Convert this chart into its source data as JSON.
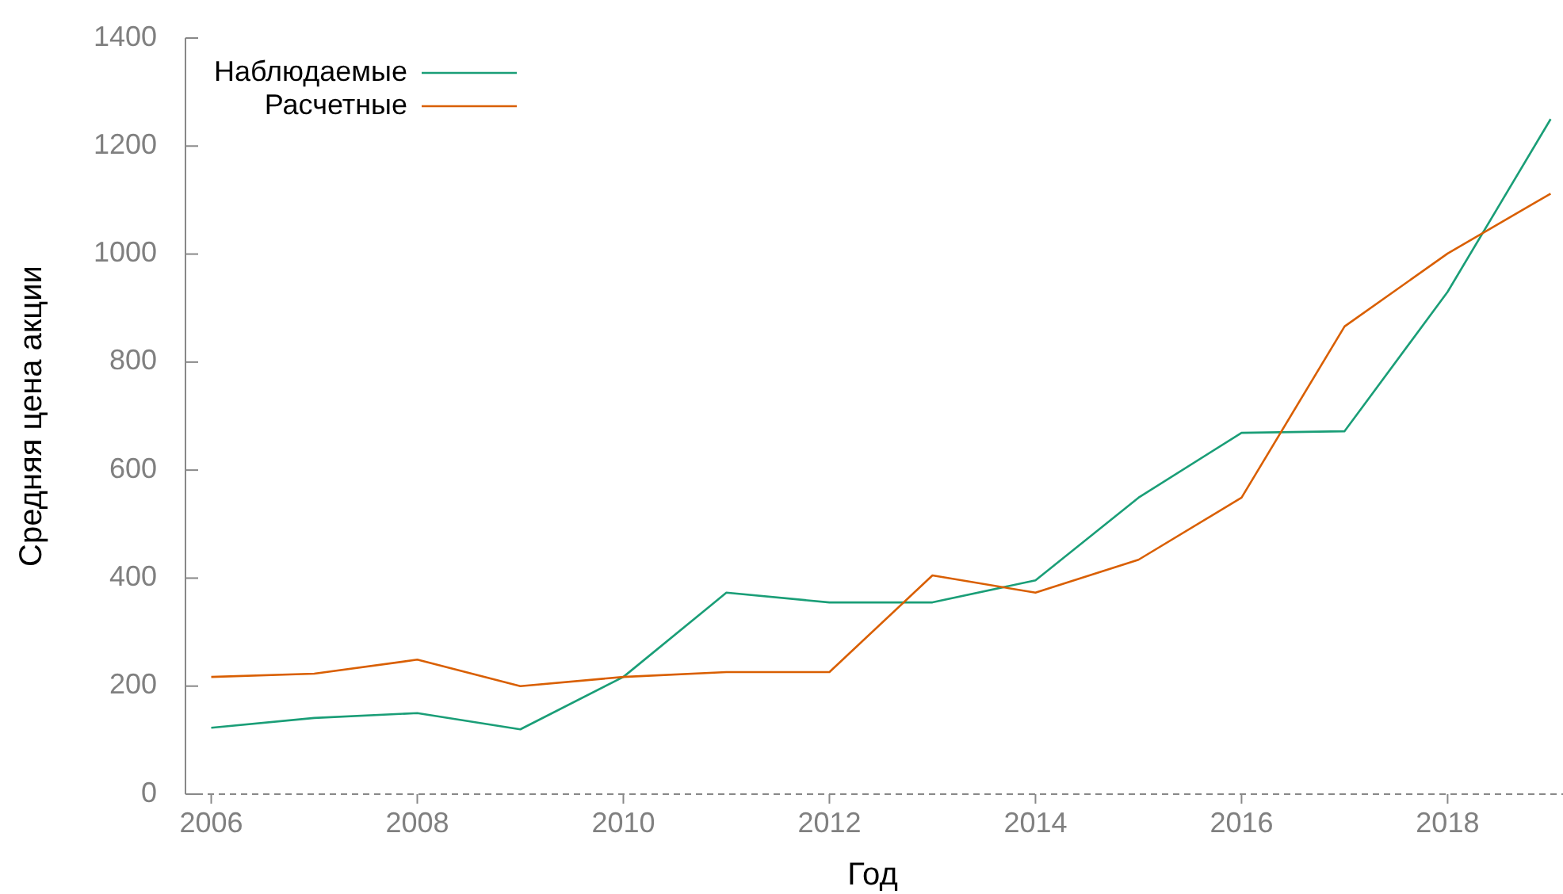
{
  "chart_data": {
    "type": "line",
    "xlabel": "Год",
    "ylabel": "Средняя цена акции",
    "x": [
      2006,
      2007,
      2008,
      2009,
      2010,
      2011,
      2012,
      2013,
      2014,
      2015,
      2016,
      2017,
      2018,
      2019
    ],
    "series": [
      {
        "name": "Наблюдаемые",
        "color": "#1a9e77",
        "values": [
          123,
          141,
          150,
          120,
          217,
          373,
          355,
          355,
          396,
          549,
          669,
          672,
          930,
          1250
        ]
      },
      {
        "name": "Расчетные",
        "color": "#d95f02",
        "values": [
          217,
          223,
          249,
          200,
          217,
          226,
          226,
          405,
          373,
          434,
          549,
          866,
          1001,
          1112
        ]
      }
    ],
    "xlim": [
      2005.75,
      2019.12
    ],
    "xticks": [
      2006,
      2008,
      2010,
      2012,
      2014,
      2016,
      2018
    ],
    "ylim": [
      0,
      1400
    ],
    "yticks": [
      0,
      200,
      400,
      600,
      800,
      1000,
      1200,
      1400
    ],
    "grid": false,
    "legend": "top left",
    "marker": "none",
    "line_style": "solid"
  }
}
